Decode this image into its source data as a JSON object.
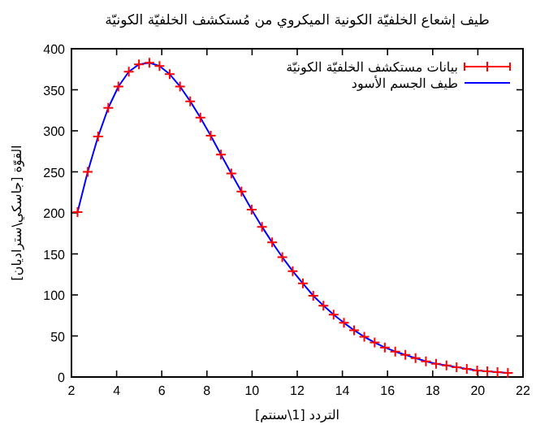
{
  "chart_data": {
    "type": "scatter",
    "title": "طيف إشعاع الخلفيّة الكونية الميكروي من مُستكشف الخلفيّة الكونيّة",
    "xlabel": "التردد [1\\سنتم]",
    "ylabel": "القوّة [جاسكي\\ستراديان]",
    "x": [
      2.27,
      2.72,
      3.18,
      3.63,
      4.08,
      4.54,
      4.99,
      5.45,
      5.9,
      6.35,
      6.81,
      7.26,
      7.71,
      8.17,
      8.62,
      9.08,
      9.53,
      9.98,
      10.44,
      10.89,
      11.34,
      11.8,
      12.25,
      12.71,
      13.16,
      13.61,
      14.07,
      14.52,
      14.97,
      15.43,
      15.88,
      16.34,
      16.79,
      17.24,
      17.7,
      18.15,
      18.61,
      19.06,
      19.51,
      19.97,
      20.42,
      20.87,
      21.33
    ],
    "series": [
      {
        "name": "بيانات مستكشف الخلفيّة الكونيّة",
        "marker": "cross",
        "color": "#ff0000",
        "values": [
          201,
          250,
          293,
          328,
          354,
          372,
          381,
          383,
          379,
          369,
          354,
          336,
          316,
          294,
          271,
          248,
          226,
          204,
          183,
          164,
          146,
          129,
          114,
          99,
          87,
          76,
          66,
          57,
          49,
          42,
          36,
          31,
          27,
          23,
          19,
          16,
          14,
          12,
          10,
          8,
          7,
          6,
          5
        ]
      },
      {
        "name": "طيف الجسم الأسود",
        "type": "line",
        "color": "#0000ff",
        "values": [
          201,
          250,
          293,
          328,
          354,
          372,
          381,
          383,
          379,
          369,
          354,
          336,
          316,
          294,
          271,
          248,
          226,
          204,
          183,
          164,
          146,
          129,
          114,
          99,
          87,
          76,
          66,
          57,
          49,
          42,
          36,
          31,
          27,
          23,
          19,
          16,
          14,
          12,
          10,
          8,
          7,
          6,
          5
        ]
      }
    ],
    "legend": "top right",
    "grid": false,
    "xlim": [
      2,
      22
    ],
    "xticks": [
      2,
      4,
      6,
      8,
      10,
      12,
      14,
      16,
      18,
      20,
      22
    ],
    "ylim": [
      0,
      400
    ],
    "yticks": [
      0,
      50,
      100,
      150,
      200,
      250,
      300,
      350,
      400
    ]
  }
}
